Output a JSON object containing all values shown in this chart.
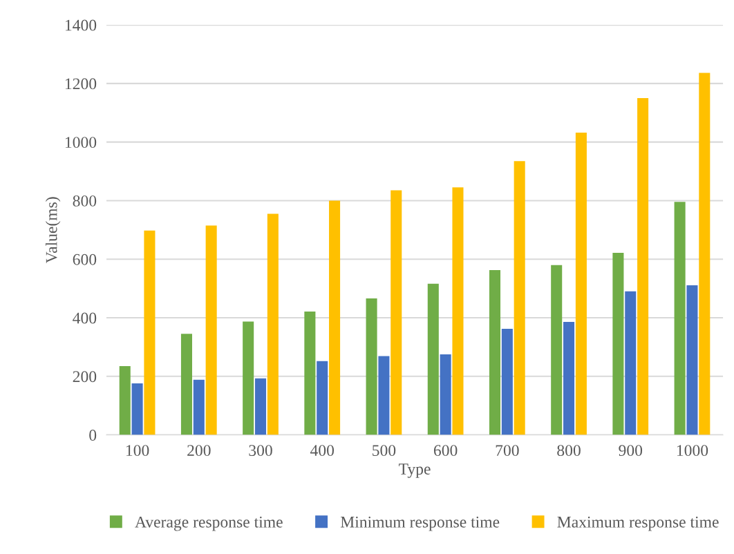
{
  "chart_data": {
    "type": "bar",
    "xlabel": "Type",
    "ylabel": "Value(ms)",
    "categories": [
      "100",
      "200",
      "300",
      "400",
      "500",
      "600",
      "700",
      "800",
      "900",
      "1000"
    ],
    "series": [
      {
        "name": "Average response time",
        "color": "#70ad47",
        "values": [
          235,
          345,
          387,
          421,
          466,
          516,
          563,
          580,
          622,
          796
        ]
      },
      {
        "name": "Minimum response time",
        "color": "#4472c4",
        "values": [
          176,
          188,
          193,
          252,
          269,
          275,
          362,
          386,
          490,
          511
        ]
      },
      {
        "name": "Maximum response time",
        "color": "#ffc000",
        "values": [
          698,
          715,
          755,
          800,
          835,
          845,
          935,
          1032,
          1150,
          1236
        ]
      }
    ],
    "ylim": [
      0,
      1400
    ],
    "yticks": [
      0,
      200,
      400,
      600,
      800,
      1000,
      1200,
      1400
    ],
    "grid": "y",
    "legend": "bottom"
  }
}
